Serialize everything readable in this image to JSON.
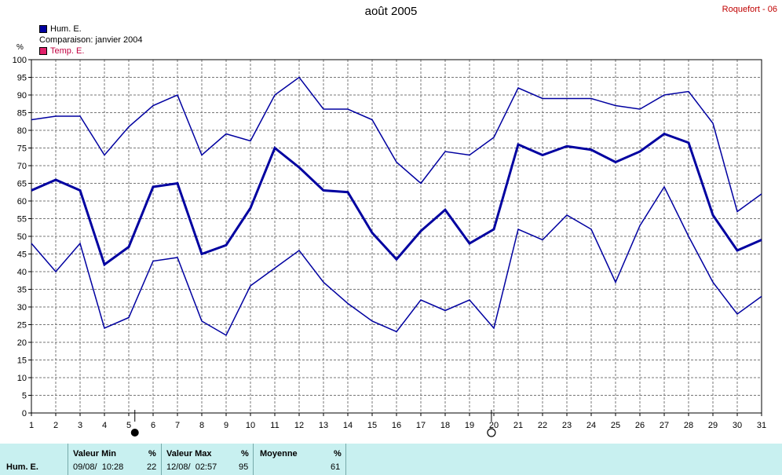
{
  "header": {
    "title": "août 2005",
    "station": "Roquefort - 06",
    "legend": [
      {
        "label": "Hum. E.",
        "color": "#0000a0"
      },
      {
        "label": "Comparaison: janvier 2004"
      },
      {
        "label": "Temp. E.",
        "color": "#e0206a"
      }
    ],
    "unit": "%"
  },
  "chart_data": {
    "type": "line",
    "x": [
      1,
      2,
      3,
      4,
      5,
      6,
      7,
      8,
      9,
      10,
      11,
      12,
      13,
      14,
      15,
      16,
      17,
      18,
      19,
      20,
      21,
      22,
      23,
      24,
      25,
      26,
      27,
      28,
      29,
      30,
      31
    ],
    "ylim": [
      0,
      100
    ],
    "yticks": [
      0,
      5,
      10,
      15,
      20,
      25,
      30,
      35,
      40,
      45,
      50,
      55,
      60,
      65,
      70,
      75,
      80,
      85,
      90,
      95,
      100
    ],
    "grid": true,
    "series": [
      {
        "values": [
          83,
          84,
          84,
          73,
          81,
          87,
          90,
          73,
          79,
          77,
          90,
          95,
          86,
          86,
          83,
          71,
          65,
          74,
          73,
          78,
          92,
          89,
          89,
          89,
          87,
          86,
          90,
          91,
          82,
          57,
          62
        ],
        "color": "#0000a0",
        "width": 1.5
      },
      {
        "values": [
          63,
          66,
          63,
          42,
          47,
          64,
          65,
          45,
          47.5,
          58,
          75,
          69.5,
          63,
          62.5,
          51,
          43.5,
          51.5,
          57.5,
          48,
          52,
          76,
          73,
          75.5,
          74.5,
          71,
          74,
          79,
          76.5,
          56,
          46,
          49
        ],
        "color": "#0000a0",
        "width": 3
      },
      {
        "values": [
          48,
          40,
          48,
          24,
          27,
          43,
          44,
          26,
          22,
          36,
          41,
          46,
          37,
          31,
          26,
          23,
          32,
          29,
          32,
          24,
          52,
          49,
          56,
          52,
          37,
          53,
          64,
          50,
          37,
          28,
          33
        ],
        "color": "#0000a0",
        "width": 1.5
      }
    ],
    "markers": [
      {
        "x": 5.25,
        "symbol": "filled-circle"
      },
      {
        "x": 19.9,
        "symbol": "open-circle"
      }
    ]
  },
  "stats": {
    "row_label": "Hum. E.",
    "min": {
      "label": "Valeur Min",
      "unit": "%",
      "date": "09/08/  10:28",
      "value": "22"
    },
    "max": {
      "label": "Valeur Max",
      "unit": "%",
      "date": "12/08/  02:57",
      "value": "95"
    },
    "avg": {
      "label": "Moyenne",
      "unit": "%",
      "value": "61"
    }
  }
}
